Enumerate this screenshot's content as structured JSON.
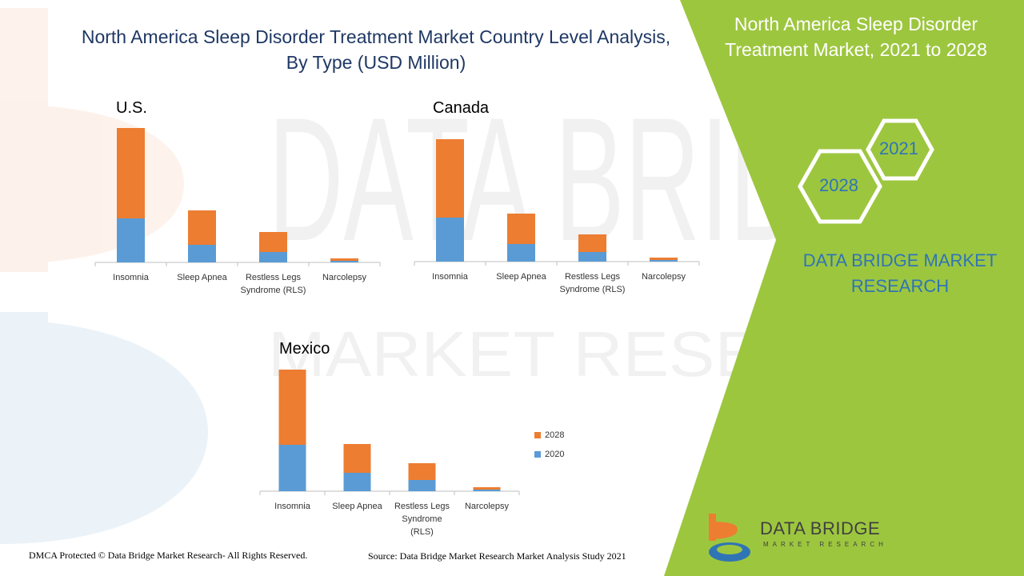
{
  "title": {
    "line1": "North America Sleep Disorder Treatment Market Country Level Analysis,",
    "line2": "By Type (USD Million)"
  },
  "panel": {
    "title_line1": "North America Sleep Disorder",
    "title_line2": "Treatment Market, 2021 to 2028",
    "hex_1": "2021",
    "hex_2": "2028",
    "brand_line1": "DATA BRIDGE MARKET",
    "brand_line2": "RESEARCH"
  },
  "watermark": {
    "line1": "DATA BRIDGE",
    "line2": "MARKET RESEARCH"
  },
  "legend": {
    "item_2028": "2028",
    "item_2020": "2020"
  },
  "footer": {
    "left": "DMCA Protected © Data Bridge Market Research- All Rights Reserved.",
    "right": "Source: Data Bridge Market Research Market Analysis Study 2021"
  },
  "logo": {
    "name": "DATA BRIDGE",
    "sub": "MARKET RESEARCH"
  },
  "colors": {
    "series_2020": "#5b9bd5",
    "series_2028": "#ed7d31",
    "panel_green": "#9dc63f",
    "title_navy": "#1f3864",
    "accent_blue": "#2f75b5"
  },
  "chart_data": [
    {
      "type": "bar",
      "stacked": true,
      "title": "U.S.",
      "categories": [
        [
          "Insomnia"
        ],
        [
          "Sleep Apnea"
        ],
        [
          "Restless Legs",
          "Syndrome (RLS)"
        ],
        [
          "Narcolepsy"
        ]
      ],
      "series": [
        {
          "name": "2020",
          "values": [
            55,
            22,
            13,
            2
          ]
        },
        {
          "name": "2028",
          "values": [
            113,
            43,
            25,
            3
          ]
        }
      ],
      "ylim": [
        0,
        168
      ]
    },
    {
      "type": "bar",
      "stacked": true,
      "title": "Canada",
      "categories": [
        [
          "Insomnia"
        ],
        [
          "Sleep Apnea"
        ],
        [
          "Restless Legs",
          "Syndrome (RLS)"
        ],
        [
          "Narcolepsy"
        ]
      ],
      "series": [
        {
          "name": "2020",
          "values": [
            55,
            22,
            12,
            2
          ]
        },
        {
          "name": "2028",
          "values": [
            98,
            38,
            22,
            3
          ]
        }
      ],
      "ylim": [
        0,
        168
      ]
    },
    {
      "type": "bar",
      "stacked": true,
      "title": "Mexico",
      "categories": [
        [
          "Insomnia"
        ],
        [
          "Sleep Apnea"
        ],
        [
          "Restless Legs",
          "Syndrome"
        ],
        [
          "Narcolepsy"
        ]
      ],
      "category_notes": [
        "",
        "",
        "(RLS)",
        ""
      ],
      "series": [
        {
          "name": "2020",
          "values": [
            58,
            23,
            14,
            2
          ]
        },
        {
          "name": "2028",
          "values": [
            94,
            36,
            21,
            3
          ]
        }
      ],
      "ylim": [
        0,
        168
      ]
    }
  ]
}
